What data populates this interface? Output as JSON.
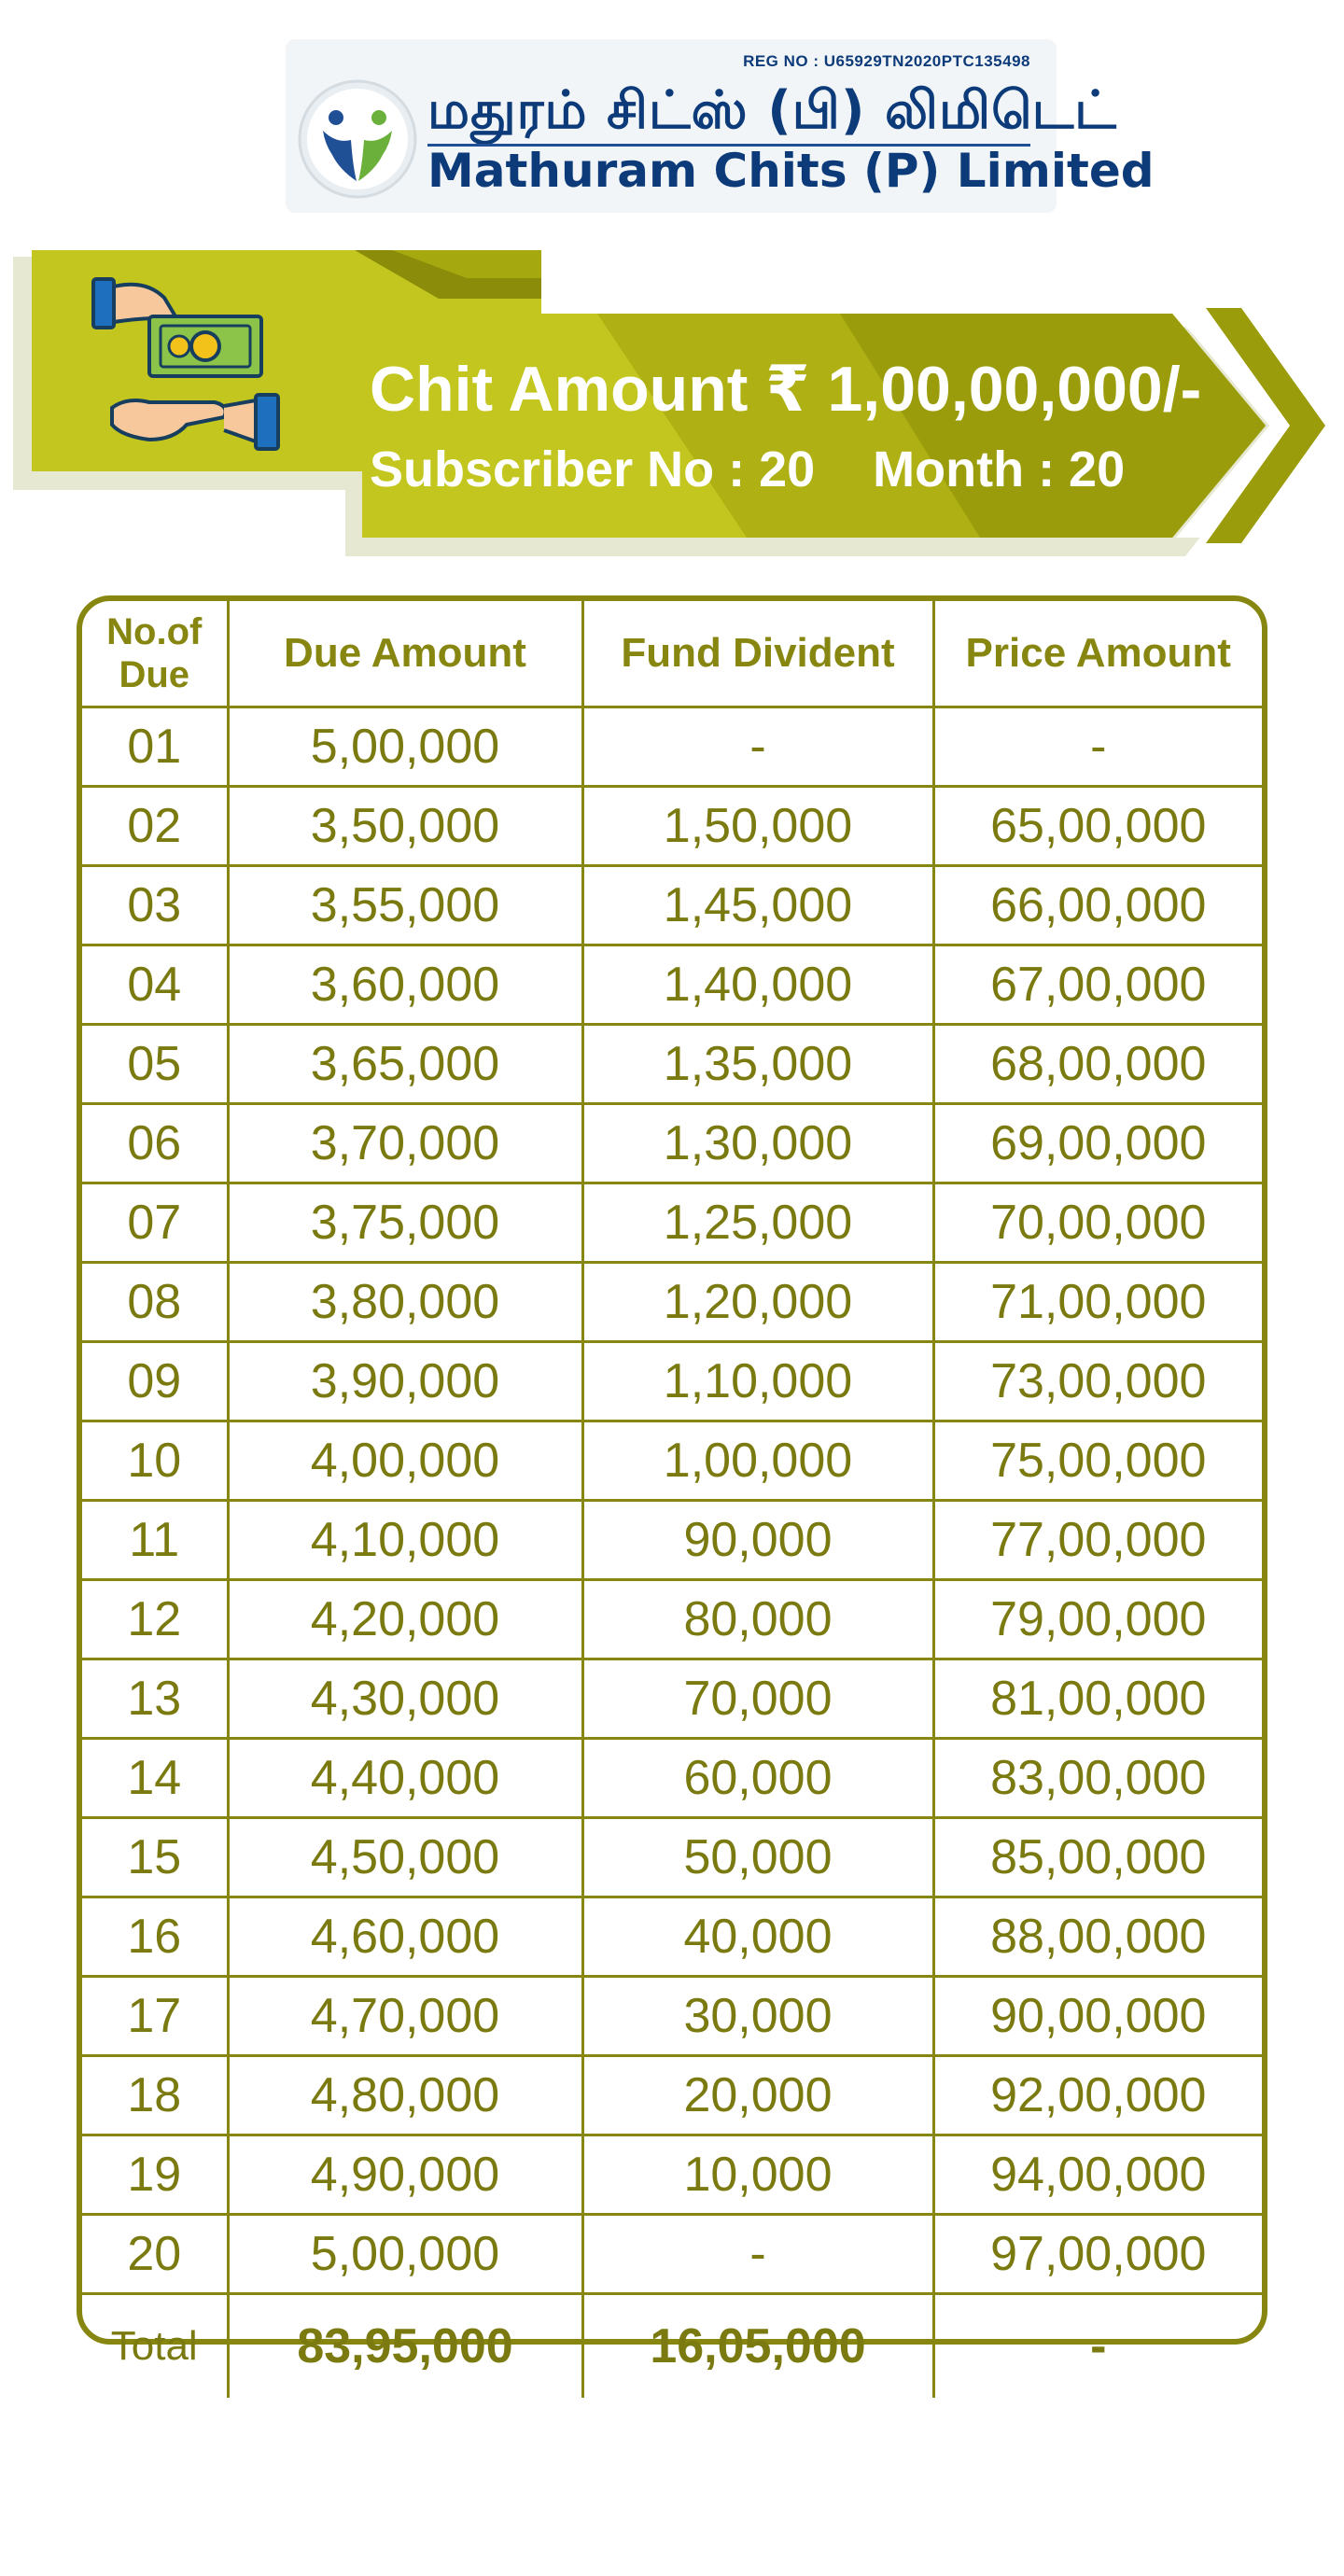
{
  "logo": {
    "reg_no": "REG NO : U65929TN2020PTC135498",
    "name_tamil": "மதுரம் சிட்ஸ் (பி) லிமிடெட்",
    "name_english": "Mathuram Chits (P) Limited"
  },
  "banner": {
    "chit_amount": "Chit Amount ₹ 1,00,00,000/-",
    "subscriber": "Subscriber No : 20",
    "month": "Month : 20"
  },
  "table": {
    "headers": {
      "no_of_due_line1": "No.of",
      "no_of_due_line2": "Due",
      "due_amount": "Due Amount",
      "fund_divident": "Fund Divident",
      "price_amount": "Price Amount"
    },
    "rows": [
      [
        "01",
        "5,00,000",
        "-",
        "-"
      ],
      [
        "02",
        "3,50,000",
        "1,50,000",
        "65,00,000"
      ],
      [
        "03",
        "3,55,000",
        "1,45,000",
        "66,00,000"
      ],
      [
        "04",
        "3,60,000",
        "1,40,000",
        "67,00,000"
      ],
      [
        "05",
        "3,65,000",
        "1,35,000",
        "68,00,000"
      ],
      [
        "06",
        "3,70,000",
        "1,30,000",
        "69,00,000"
      ],
      [
        "07",
        "3,75,000",
        "1,25,000",
        "70,00,000"
      ],
      [
        "08",
        "3,80,000",
        "1,20,000",
        "71,00,000"
      ],
      [
        "09",
        "3,90,000",
        "1,10,000",
        "73,00,000"
      ],
      [
        "10",
        "4,00,000",
        "1,00,000",
        "75,00,000"
      ],
      [
        "11",
        "4,10,000",
        "90,000",
        "77,00,000"
      ],
      [
        "12",
        "4,20,000",
        "80,000",
        "79,00,000"
      ],
      [
        "13",
        "4,30,000",
        "70,000",
        "81,00,000"
      ],
      [
        "14",
        "4,40,000",
        "60,000",
        "83,00,000"
      ],
      [
        "15",
        "4,50,000",
        "50,000",
        "85,00,000"
      ],
      [
        "16",
        "4,60,000",
        "40,000",
        "88,00,000"
      ],
      [
        "17",
        "4,70,000",
        "30,000",
        "90,00,000"
      ],
      [
        "18",
        "4,80,000",
        "20,000",
        "92,00,000"
      ],
      [
        "19",
        "4,90,000",
        "10,000",
        "94,00,000"
      ],
      [
        "20",
        "5,00,000",
        "-",
        "97,00,000"
      ]
    ],
    "total": {
      "label": "Total",
      "due_amount": "83,95,000",
      "fund_divident": "16,05,000",
      "price_amount": "-"
    }
  },
  "colors": {
    "olive_text": "#7a7a10",
    "olive_border": "#868610",
    "banner_light": "#c2c61e",
    "banner_dark": "#8a8c0a",
    "brand_blue": "#0d3b7a"
  }
}
